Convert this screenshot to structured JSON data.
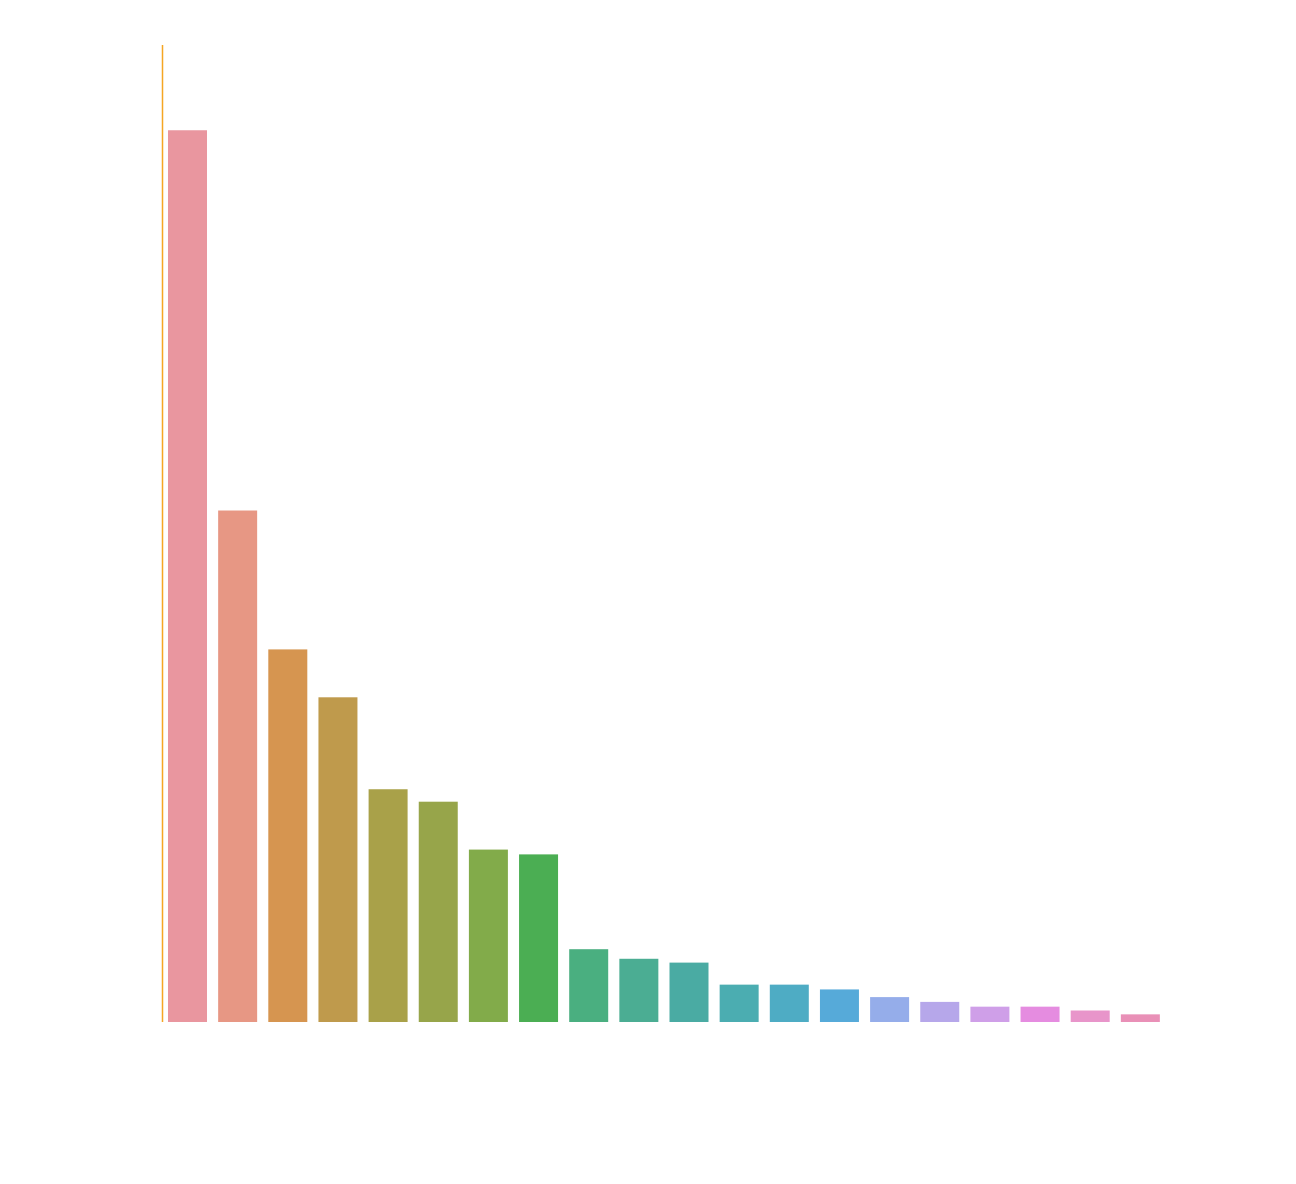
{
  "chart_data": {
    "type": "bar",
    "title": "",
    "xlabel": "",
    "ylabel": "",
    "grid": false,
    "ylim": [
      0,
      102
    ],
    "axis_color": "#f5a623",
    "values": [
      93.1,
      53.4,
      38.9,
      33.9,
      24.3,
      23.0,
      18.0,
      17.5,
      7.6,
      6.6,
      6.2,
      3.9,
      3.9,
      3.4,
      2.6,
      2.1,
      1.6,
      1.6,
      1.2,
      0.8
    ],
    "colors": [
      "#e9969f",
      "#e79784",
      "#d69550",
      "#bf9a4c",
      "#a9a149",
      "#97a54a",
      "#82ab4a",
      "#4bae53",
      "#4aaf80",
      "#4bad93",
      "#4aaba3",
      "#4badb1",
      "#4eacc4",
      "#56aad9",
      "#95adea",
      "#b6a7ea",
      "#cf9fe8",
      "#e58ce0",
      "#e895ca",
      "#e990b7"
    ]
  }
}
